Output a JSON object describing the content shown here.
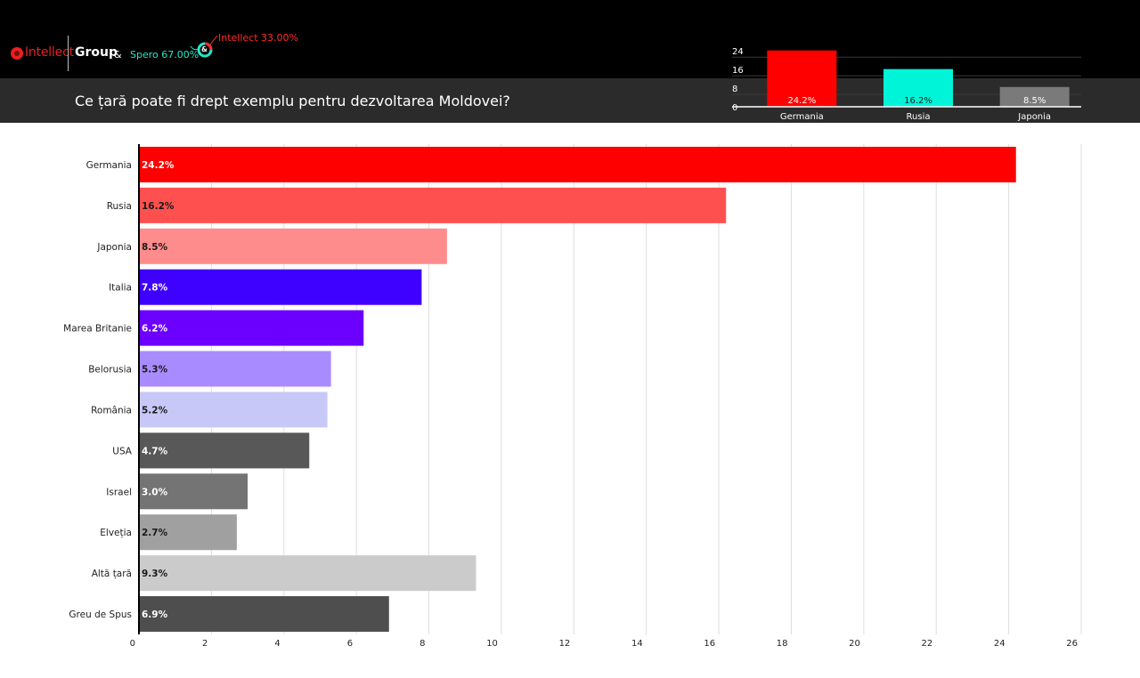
{
  "header": {
    "brand": "Intellect",
    "group": "Group",
    "amp": "&",
    "spero_label": "Spero 67.00%",
    "intellect_label": "Intellect 33.00%",
    "ring_amp": "&",
    "question": "Ce țară poate fi drept exemplu pentru dezvoltarea Moldovei?"
  },
  "colors": {
    "brand_red": "#e8201f",
    "spero_teal": "#22e8c8"
  },
  "mini_chart": {
    "type": "bar",
    "categories": [
      "Germania",
      "Rusia",
      "Japonia"
    ],
    "values": [
      24.2,
      16.2,
      8.5
    ],
    "value_labels": [
      "24.2%",
      "16.2%",
      "8.5%"
    ],
    "colors": [
      "#ff0000",
      "#00f5d8",
      "#7a7a7a"
    ],
    "yticks": [
      0,
      8,
      16,
      24
    ],
    "ylim": [
      0,
      26
    ]
  },
  "chart_data": {
    "type": "bar",
    "orientation": "horizontal",
    "categories": [
      "Germania",
      "Rusia",
      "Japonia",
      "Italia",
      "Marea Britanie",
      "Belorusia",
      "România",
      "USA",
      "Israel",
      "Elveția",
      "Altă țară",
      "Greu de Spus"
    ],
    "values": [
      24.2,
      16.2,
      8.5,
      7.8,
      6.2,
      5.3,
      5.2,
      4.7,
      3.0,
      2.7,
      9.3,
      6.9
    ],
    "value_labels": [
      "24.2%",
      "16.2%",
      "8.5%",
      "7.8%",
      "6.2%",
      "5.3%",
      "5.2%",
      "4.7%",
      "3.0%",
      "2.7%",
      "9.3%",
      "6.9%"
    ],
    "colors": [
      "#ff0000",
      "#ff5050",
      "#ff8c8c",
      "#3e00ff",
      "#6c00ff",
      "#a88cff",
      "#c8c8f8",
      "#585858",
      "#747474",
      "#a0a0a0",
      "#cbcbcb",
      "#4e4e4e"
    ],
    "label_colors": [
      "#ffffff",
      "#1a1a1a",
      "#1a1a1a",
      "#ffffff",
      "#ffffff",
      "#1a1a1a",
      "#1a1a1a",
      "#ffffff",
      "#ffffff",
      "#1a1a1a",
      "#1a1a1a",
      "#ffffff"
    ],
    "xticks": [
      0,
      2,
      4,
      6,
      8,
      10,
      12,
      14,
      16,
      18,
      20,
      22,
      24,
      26
    ],
    "xlim": [
      0,
      26
    ],
    "grid": true
  }
}
